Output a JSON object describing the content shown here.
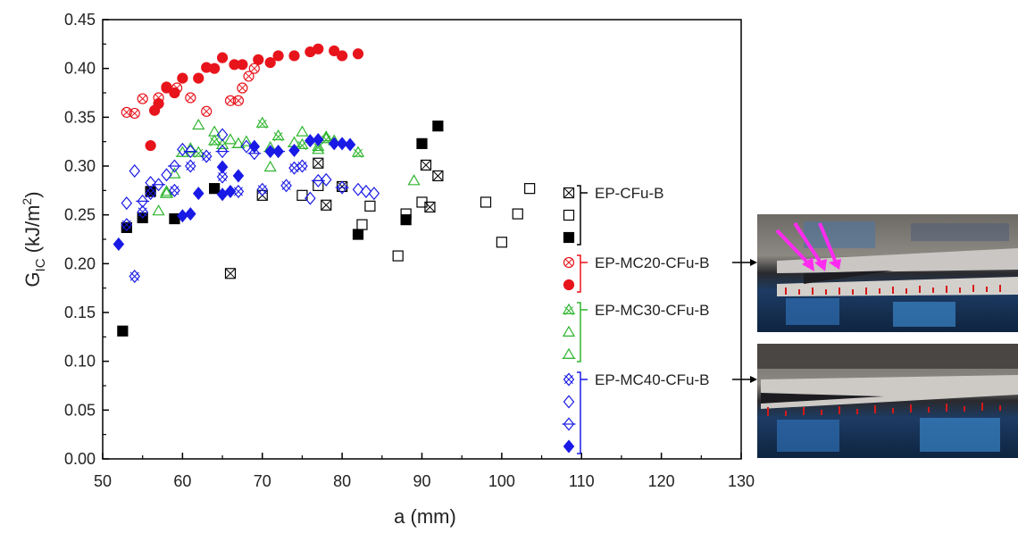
{
  "chart_data": {
    "type": "scatter",
    "xlabel": "a (mm)",
    "ylabel": [
      "G",
      "IC",
      " (kJ/m",
      "2",
      ")"
    ],
    "xlim": [
      50,
      130
    ],
    "ylim": [
      0,
      0.45
    ],
    "xticks": [
      50,
      60,
      70,
      80,
      90,
      100,
      110,
      120,
      130
    ],
    "yticks": [
      {
        "value": 0,
        "label": "0.00"
      },
      {
        "value": 0.05,
        "label": "0.05"
      },
      {
        "value": 0.1,
        "label": "0.10"
      },
      {
        "value": 0.15,
        "label": "0.15"
      },
      {
        "value": 0.2,
        "label": "0.20"
      },
      {
        "value": 0.25,
        "label": "0.25"
      },
      {
        "value": 0.3,
        "label": "0.30"
      },
      {
        "value": 0.35,
        "label": "0.35"
      },
      {
        "value": 0.4,
        "label": "0.40"
      },
      {
        "value": 0.45,
        "label": "0.45"
      }
    ],
    "groups": [
      {
        "name": "EP-CFu-B",
        "color": "#000000",
        "series": [
          {
            "marker": "square",
            "style": "crossed",
            "x": [
              66,
              70,
              77,
              78,
              80,
              90.5,
              91,
              92
            ],
            "values": [
              0.19,
              0.27,
              0.303,
              0.26,
              0.279,
              0.301,
              0.258,
              0.29
            ]
          },
          {
            "marker": "square",
            "style": "open",
            "x": [
              75,
              77,
              82.5,
              83.5,
              87,
              88,
              90,
              98,
              100,
              102,
              103.5
            ],
            "values": [
              0.27,
              0.28,
              0.24,
              0.259,
              0.208,
              0.251,
              0.263,
              0.263,
              0.222,
              0.251,
              0.277
            ]
          },
          {
            "marker": "square",
            "style": "filled",
            "x": [
              52.5,
              53,
              55,
              56,
              59,
              64,
              82,
              88,
              90,
              92
            ],
            "values": [
              0.131,
              0.237,
              0.247,
              0.274,
              0.246,
              0.277,
              0.23,
              0.245,
              0.323,
              0.341
            ]
          }
        ]
      },
      {
        "name": "EP-MC20-CFu-B",
        "color": "#e8141c",
        "series": [
          {
            "marker": "circle",
            "style": "crossed",
            "x": [
              53,
              54,
              55,
              57,
              58,
              59.3,
              61,
              63,
              66,
              67,
              67.5,
              68.3,
              69
            ],
            "values": [
              0.355,
              0.354,
              0.369,
              0.37,
              0.38,
              0.38,
              0.37,
              0.356,
              0.367,
              0.367,
              0.38,
              0.392,
              0.4
            ]
          },
          {
            "marker": "circle",
            "style": "filled",
            "x": [
              56,
              56.5,
              57,
              58,
              59,
              60,
              62,
              63,
              64,
              65,
              66.5,
              67.5,
              69.5,
              71,
              72,
              74,
              76,
              77,
              79,
              80,
              82
            ],
            "values": [
              0.321,
              0.357,
              0.364,
              0.381,
              0.375,
              0.39,
              0.39,
              0.401,
              0.4,
              0.411,
              0.404,
              0.404,
              0.409,
              0.406,
              0.413,
              0.413,
              0.417,
              0.42,
              0.418,
              0.413,
              0.415
            ]
          }
        ]
      },
      {
        "name": "EP-MC30-CFu-B",
        "color": "#2fb52f",
        "series": [
          {
            "marker": "triangle",
            "style": "crossed",
            "x": [
              62,
              64,
              65,
              70,
              72,
              75,
              77,
              78,
              82
            ],
            "values": [
              0.314,
              0.326,
              0.322,
              0.344,
              0.331,
              0.322,
              0.32,
              0.328,
              0.314
            ]
          },
          {
            "marker": "triangle",
            "style": "open",
            "x": [
              57,
              58,
              59,
              61,
              62,
              64,
              66,
              68,
              71,
              75,
              77,
              79,
              89
            ],
            "values": [
              0.254,
              0.274,
              0.292,
              0.318,
              0.342,
              0.335,
              0.327,
              0.325,
              0.299,
              0.335,
              0.317,
              0.326,
              0.285
            ]
          },
          {
            "marker": "triangle",
            "style": "line",
            "x": [
              58,
              60,
              67,
              71,
              74,
              78
            ],
            "values": [
              0.272,
              0.314,
              0.323,
              0.319,
              0.324,
              0.33
            ]
          }
        ]
      },
      {
        "name": "EP-MC40-CFu-B",
        "color": "#1a1ae6",
        "series": [
          {
            "marker": "diamond",
            "style": "crossed",
            "x": [
              54,
              53,
              55,
              56,
              59,
              61,
              63,
              65,
              67,
              70,
              73,
              74,
              75
            ],
            "values": [
              0.187,
              0.24,
              0.253,
              0.272,
              0.275,
              0.3,
              0.31,
              0.289,
              0.274,
              0.276,
              0.28,
              0.298,
              0.3
            ]
          },
          {
            "marker": "diamond",
            "style": "open",
            "x": [
              53,
              54,
              56,
              58,
              60,
              65,
              68,
              76,
              78,
              82,
              83,
              84
            ],
            "values": [
              0.262,
              0.295,
              0.283,
              0.291,
              0.317,
              0.332,
              0.32,
              0.267,
              0.286,
              0.276,
              0.274,
              0.272
            ]
          },
          {
            "marker": "diamond",
            "style": "line",
            "x": [
              55,
              57,
              59,
              61,
              65,
              69,
              72,
              77,
              80
            ],
            "values": [
              0.264,
              0.281,
              0.3,
              0.315,
              0.315,
              0.313,
              0.315,
              0.285,
              0.278
            ]
          },
          {
            "marker": "diamond",
            "style": "filled",
            "x": [
              52,
              60,
              61,
              62,
              65,
              65,
              66,
              67,
              69,
              71,
              72,
              74,
              76,
              77,
              79,
              80,
              81
            ],
            "values": [
              0.22,
              0.249,
              0.251,
              0.272,
              0.299,
              0.271,
              0.274,
              0.29,
              0.32,
              0.315,
              0.315,
              0.316,
              0.326,
              0.327,
              0.323,
              0.323,
              0.322
            ]
          }
        ]
      }
    ]
  }
}
